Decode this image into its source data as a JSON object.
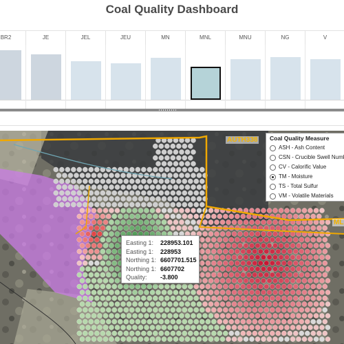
{
  "dashboard": {
    "title": "Coal Quality Dashboard"
  },
  "seam_chart": {
    "categories": [
      "BR2",
      "JE",
      "JEL",
      "JEU",
      "MN",
      "MNL",
      "MNU",
      "NG",
      "V"
    ],
    "values": [
      0.92,
      0.85,
      0.72,
      0.68,
      0.78,
      0.62,
      0.76,
      0.8,
      0.76
    ],
    "selected": "MNL",
    "colors": {
      "bar": "#d7e3ec",
      "bar_dark": "#cdd6df",
      "bar_selected": "#b5d3d8"
    }
  },
  "legend": {
    "title": "Coal Quality Measure",
    "selected": "TM - Moisture",
    "items": [
      "ASH - Ash Content",
      "CSN - Crucible Swell Number",
      "CV - Calorific Value",
      "TM - Moisture",
      "TS - Total Sulfur",
      "VM - Volatile Materials"
    ]
  },
  "map": {
    "tenement_labels": [
      "AUTH338",
      "ML"
    ],
    "colors": {
      "high": "#c8102e",
      "low": "#1a7a2a",
      "neutral": "#cfcfcf",
      "boundary": "#f0a800",
      "lease": "#c97ce6"
    }
  },
  "tooltip": {
    "rows": [
      {
        "label": "Easting 1:",
        "value": "228953.101"
      },
      {
        "label": "Easting 1:",
        "value": "228953"
      },
      {
        "label": "Northing 1:",
        "value": "6607701.515"
      },
      {
        "label": "Northing 1:",
        "value": "6607702"
      },
      {
        "label": "Quality:",
        "value": "-3.800"
      }
    ]
  }
}
